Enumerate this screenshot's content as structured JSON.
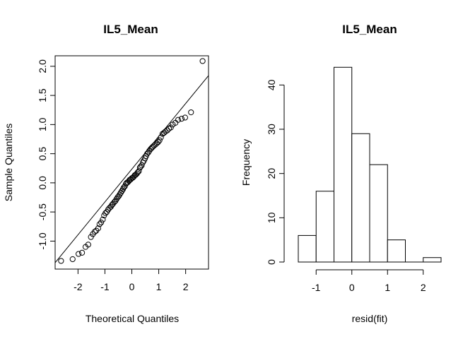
{
  "chart_data": [
    {
      "type": "scatter",
      "title": "IL5_Mean",
      "xlabel": "Theoretical Quantiles",
      "ylabel": "Sample Quantiles",
      "xlim": [
        -2.85,
        2.85
      ],
      "ylim": [
        -1.48,
        2.18
      ],
      "x_ticks": [
        -2,
        -1,
        0,
        1,
        2
      ],
      "x_tick_labels": [
        "-2",
        "-1",
        "0",
        "1",
        "2"
      ],
      "y_ticks": [
        -1.0,
        -0.5,
        0.0,
        0.5,
        1.0,
        1.5,
        2.0
      ],
      "y_tick_labels": [
        "-1.0",
        "-0.5",
        "0.0",
        "0.5",
        "1.0",
        "1.5",
        "2.0"
      ],
      "grid": false,
      "reference_line": {
        "x": [
          -2.85,
          2.85
        ],
        "y": [
          -1.37,
          1.84
        ]
      },
      "points": {
        "x": [
          -2.63,
          -2.2,
          -1.98,
          -1.85,
          -1.72,
          -1.62,
          -1.52,
          -1.45,
          -1.38,
          -1.32,
          -1.25,
          -1.2,
          -1.14,
          -1.08,
          -1.03,
          -0.98,
          -0.93,
          -0.88,
          -0.83,
          -0.78,
          -0.74,
          -0.7,
          -0.65,
          -0.61,
          -0.57,
          -0.53,
          -0.49,
          -0.45,
          -0.41,
          -0.37,
          -0.33,
          -0.3,
          -0.26,
          -0.22,
          -0.19,
          -0.15,
          -0.11,
          -0.08,
          -0.04,
          0.0,
          0.04,
          0.08,
          0.11,
          0.15,
          0.19,
          0.22,
          0.26,
          0.3,
          0.33,
          0.37,
          0.41,
          0.45,
          0.49,
          0.53,
          0.57,
          0.61,
          0.65,
          0.7,
          0.74,
          0.78,
          0.83,
          0.88,
          0.93,
          0.98,
          1.03,
          1.08,
          1.14,
          1.2,
          1.25,
          1.32,
          1.38,
          1.45,
          1.52,
          1.62,
          1.72,
          1.85,
          1.98,
          2.2,
          2.63
        ],
        "y": [
          -1.34,
          -1.31,
          -1.22,
          -1.2,
          -1.1,
          -1.06,
          -0.93,
          -0.88,
          -0.84,
          -0.82,
          -0.78,
          -0.71,
          -0.68,
          -0.63,
          -0.56,
          -0.52,
          -0.5,
          -0.46,
          -0.43,
          -0.41,
          -0.38,
          -0.36,
          -0.33,
          -0.31,
          -0.28,
          -0.25,
          -0.23,
          -0.2,
          -0.17,
          -0.14,
          -0.11,
          -0.08,
          -0.06,
          -0.02,
          0.0,
          0.01,
          0.03,
          0.05,
          0.06,
          0.08,
          0.09,
          0.11,
          0.13,
          0.14,
          0.16,
          0.18,
          0.2,
          0.26,
          0.28,
          0.3,
          0.35,
          0.38,
          0.42,
          0.46,
          0.5,
          0.52,
          0.55,
          0.58,
          0.6,
          0.62,
          0.64,
          0.66,
          0.68,
          0.7,
          0.73,
          0.78,
          0.84,
          0.86,
          0.88,
          0.9,
          0.93,
          0.95,
          1.0,
          1.03,
          1.08,
          1.1,
          1.12,
          1.21,
          2.09
        ]
      }
    },
    {
      "type": "bar",
      "title": "IL5_Mean",
      "xlabel": "resid(fit)",
      "ylabel": "Frequency",
      "bins": [
        [
          -1.5,
          -1.0
        ],
        [
          -1.0,
          -0.5
        ],
        [
          -0.5,
          0.0
        ],
        [
          0.0,
          0.5
        ],
        [
          0.5,
          1.0
        ],
        [
          1.0,
          1.5
        ],
        [
          1.5,
          2.0
        ],
        [
          2.0,
          2.5
        ]
      ],
      "values": [
        6,
        16,
        44,
        29,
        22,
        5,
        0,
        1
      ],
      "xlim": [
        -1.5,
        2.5
      ],
      "ylim": [
        0,
        45
      ],
      "x_ticks": [
        -1,
        0,
        1,
        2
      ],
      "x_tick_labels": [
        "-1",
        "0",
        "1",
        "2"
      ],
      "y_ticks": [
        0,
        10,
        20,
        30,
        40
      ],
      "y_tick_labels": [
        "0",
        "10",
        "20",
        "30",
        "40"
      ],
      "grid": false
    }
  ]
}
